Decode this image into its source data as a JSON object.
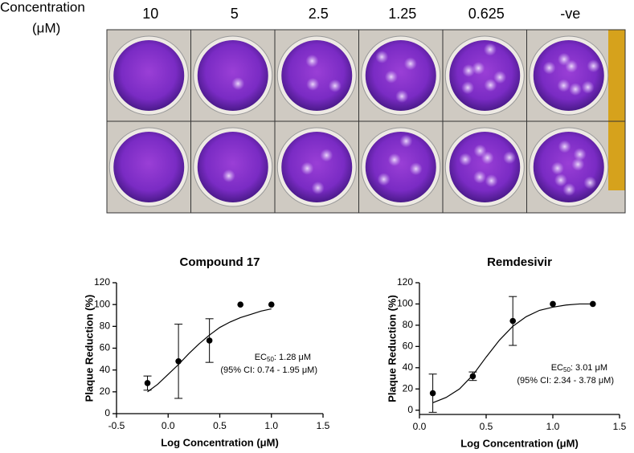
{
  "plate": {
    "axis_label": [
      "Concentration",
      "(μM)"
    ],
    "columns": [
      "10",
      "5",
      "2.5",
      "1.25",
      "0.625",
      "-ve"
    ]
  },
  "chart_data": [
    {
      "type": "scatter",
      "title": "Compound 17",
      "x_label": "Log Concentration (μM)",
      "y_label": "Plaque Reduction (%)",
      "x": [
        -0.2,
        0.1,
        0.4,
        0.7,
        1.0
      ],
      "values": [
        28,
        48,
        67,
        100,
        100
      ],
      "errors": [
        6.5,
        34,
        20,
        0,
        0
      ],
      "color": "#000000",
      "fit": {
        "x": [
          -0.2,
          -0.1,
          0,
          0.1,
          0.2,
          0.3,
          0.4,
          0.5,
          0.6,
          0.7,
          0.8,
          0.9,
          1.0
        ],
        "values": [
          20,
          27,
          36,
          45,
          55,
          64,
          72,
          79,
          84,
          88,
          91,
          94,
          96
        ]
      },
      "xlim": [
        -0.5,
        1.5
      ],
      "xticks": [
        -0.5,
        {
          "value": 0,
          "label": "0.0"
        },
        0.5,
        {
          "value": 1,
          "label": "1.0"
        },
        1.5
      ],
      "ylim": [
        0,
        120
      ],
      "yticks": [
        0,
        20,
        40,
        60,
        80,
        100,
        120
      ],
      "ec50": {
        "prefix": "EC",
        "sub": "50",
        "text": ": 1.28 μM"
      },
      "ci": "(95% CI: 0.74 - 1.95 μM)"
    },
    {
      "type": "scatter",
      "title": "Remdesivir",
      "x_label": "Log Concentration (μM)",
      "y_label": "Plaque Reduction (%)",
      "x": [
        0.1,
        0.4,
        0.7,
        1.0,
        1.3
      ],
      "values": [
        16,
        32,
        84,
        100,
        100
      ],
      "errors": [
        18,
        4,
        23,
        0,
        0
      ],
      "color": "#000000",
      "fit": {
        "x": [
          0.1,
          0.2,
          0.3,
          0.4,
          0.5,
          0.6,
          0.7,
          0.8,
          0.9,
          1.0,
          1.1,
          1.2,
          1.3
        ],
        "values": [
          7,
          12,
          20,
          33,
          50,
          66,
          79,
          88,
          94,
          97,
          99,
          100,
          100
        ]
      },
      "xlim": [
        0,
        1.5
      ],
      "xticks": [
        {
          "value": 0,
          "label": "0.0"
        },
        0.5,
        {
          "value": 1,
          "label": "1.0"
        },
        1.5
      ],
      "ylim": [
        -4,
        120
      ],
      "yticks": [
        0,
        20,
        40,
        60,
        80,
        100,
        120
      ],
      "ec50": {
        "prefix": "EC",
        "sub": "50",
        "text": ": 3.01 μM"
      },
      "ci": "(95% CI: 2.34 - 3.78 μM)"
    }
  ]
}
